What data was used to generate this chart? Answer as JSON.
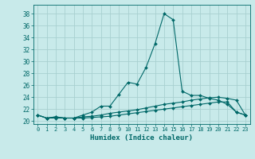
{
  "xlabel": "Humidex (Indice chaleur)",
  "background_color": "#c8eaea",
  "grid_color": "#a8d0d0",
  "line_color": "#006868",
  "xlim": [
    -0.5,
    23.5
  ],
  "ylim": [
    19.5,
    39.5
  ],
  "yticks": [
    20,
    22,
    24,
    26,
    28,
    30,
    32,
    34,
    36,
    38
  ],
  "xticks": [
    0,
    1,
    2,
    3,
    4,
    5,
    6,
    7,
    8,
    9,
    10,
    11,
    12,
    13,
    14,
    15,
    16,
    17,
    18,
    19,
    20,
    21,
    22,
    23
  ],
  "series": [
    {
      "x": [
        0,
        1,
        2,
        3,
        4,
        5,
        6,
        7,
        8,
        9,
        10,
        11,
        12,
        13,
        14,
        15,
        16,
        17,
        18,
        19,
        20,
        21,
        22,
        23
      ],
      "y": [
        21.0,
        20.5,
        20.7,
        20.5,
        20.5,
        20.7,
        20.8,
        21.0,
        21.3,
        21.5,
        21.7,
        21.9,
        22.2,
        22.5,
        22.8,
        23.0,
        23.2,
        23.5,
        23.7,
        23.9,
        24.0,
        23.8,
        23.5,
        21.0
      ]
    },
    {
      "x": [
        0,
        1,
        2,
        3,
        4,
        5,
        6,
        7,
        8,
        9,
        10,
        11,
        12,
        13,
        14,
        15,
        16,
        17,
        18,
        19,
        20,
        21,
        22,
        23
      ],
      "y": [
        21.0,
        20.5,
        20.7,
        20.5,
        20.5,
        21.0,
        21.5,
        22.5,
        22.5,
        24.5,
        26.5,
        26.2,
        29.0,
        33.0,
        38.0,
        37.0,
        25.0,
        24.3,
        24.3,
        23.8,
        23.5,
        22.8,
        21.5,
        21.0
      ]
    },
    {
      "x": [
        0,
        1,
        2,
        3,
        4,
        5,
        6,
        7,
        8,
        9,
        10,
        11,
        12,
        13,
        14,
        15,
        16,
        17,
        18,
        19,
        20,
        21,
        22,
        23
      ],
      "y": [
        21.0,
        20.5,
        20.5,
        20.5,
        20.5,
        20.5,
        20.6,
        20.7,
        20.8,
        21.0,
        21.2,
        21.4,
        21.6,
        21.8,
        22.0,
        22.2,
        22.4,
        22.6,
        22.8,
        23.0,
        23.2,
        23.2,
        21.5,
        21.0
      ]
    }
  ]
}
